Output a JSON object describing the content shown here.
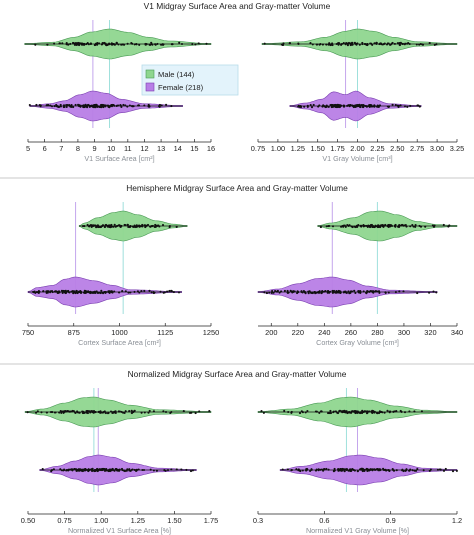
{
  "colors": {
    "male": "#8fd68f",
    "male_edge": "#4a9a55",
    "female": "#b87ee6",
    "female_edge": "#7a3fb0",
    "male_ref": "#9fe0dc",
    "female_ref": "#c4a6ec",
    "panel_bg": "#ffffff",
    "divider": "#c9c9c9",
    "dots": "#111111"
  },
  "legend": {
    "male_label": "Male (144)",
    "female_label": "Female (218)",
    "placement": "top-center"
  },
  "chart_data": [
    {
      "type": "violin",
      "row": 1,
      "col": 1,
      "row_title": "V1 Midgray Surface Area and Gray-matter Volume",
      "xlabel": "V1 Surface Area [cm²]",
      "xlim": [
        5,
        16
      ],
      "ticks": [
        5,
        6,
        7,
        8,
        9,
        10,
        11,
        12,
        13,
        14,
        15,
        16
      ],
      "tick_labels": [
        "5",
        "6",
        "7",
        "8",
        "9",
        "10",
        "11",
        "12",
        "13",
        "14",
        "15",
        "16"
      ],
      "series": [
        {
          "name": "Male (144)",
          "group": "male",
          "median": 9.9,
          "range": [
            4.8,
            16.0
          ],
          "profile": [
            [
              4.8,
              0.02
            ],
            [
              6.5,
              0.12
            ],
            [
              7.8,
              0.45
            ],
            [
              8.8,
              0.8
            ],
            [
              9.9,
              1.0
            ],
            [
              11.0,
              0.78
            ],
            [
              12.2,
              0.45
            ],
            [
              13.5,
              0.2
            ],
            [
              16.0,
              0.02
            ]
          ]
        },
        {
          "name": "Female (218)",
          "group": "female",
          "median": 8.9,
          "range": [
            5.1,
            14.3
          ],
          "profile": [
            [
              5.1,
              0.02
            ],
            [
              6.3,
              0.15
            ],
            [
              7.2,
              0.35
            ],
            [
              8.1,
              0.75
            ],
            [
              8.9,
              1.0
            ],
            [
              9.7,
              0.85
            ],
            [
              10.6,
              0.45
            ],
            [
              12.0,
              0.15
            ],
            [
              14.3,
              0.02
            ]
          ]
        }
      ]
    },
    {
      "type": "violin",
      "row": 1,
      "col": 2,
      "xlabel": "V1 Gray Volume [cm³]",
      "xlim": [
        0.75,
        3.25
      ],
      "ticks": [
        0.75,
        1.0,
        1.25,
        1.5,
        1.75,
        2.0,
        2.25,
        2.5,
        2.75,
        3.0,
        3.25
      ],
      "tick_labels": [
        "0.75",
        "1.00",
        "1.25",
        "1.50",
        "1.75",
        "2.00",
        "2.25",
        "2.50",
        "2.75",
        "3.00",
        "3.25"
      ],
      "series": [
        {
          "name": "Male (144)",
          "group": "male",
          "median": 2.0,
          "range": [
            0.8,
            3.25
          ],
          "profile": [
            [
              0.8,
              0.02
            ],
            [
              1.3,
              0.15
            ],
            [
              1.6,
              0.45
            ],
            [
              1.85,
              0.85
            ],
            [
              2.0,
              1.0
            ],
            [
              2.2,
              0.85
            ],
            [
              2.45,
              0.45
            ],
            [
              2.75,
              0.15
            ],
            [
              3.25,
              0.02
            ]
          ]
        },
        {
          "name": "Female (218)",
          "group": "female",
          "median": 1.85,
          "range": [
            1.15,
            2.8
          ],
          "profile": [
            [
              1.15,
              0.02
            ],
            [
              1.35,
              0.2
            ],
            [
              1.55,
              0.45
            ],
            [
              1.7,
              0.95
            ],
            [
              1.85,
              0.75
            ],
            [
              1.98,
              1.0
            ],
            [
              2.15,
              0.55
            ],
            [
              2.4,
              0.15
            ],
            [
              2.8,
              0.02
            ]
          ]
        }
      ]
    },
    {
      "type": "violin",
      "row": 2,
      "col": 1,
      "row_title": "Hemisphere Midgray Surface Area and Gray-matter Volume",
      "xlabel": "Cortex Surface Area [cm²]",
      "xlim": [
        750,
        1250
      ],
      "ticks": [
        750,
        875,
        1000,
        1125,
        1250
      ],
      "tick_labels": [
        "750",
        "875",
        "1000",
        "1125",
        "1250"
      ],
      "series": [
        {
          "name": "Male (144)",
          "group": "male",
          "median": 1010,
          "range": [
            890,
            1185
          ],
          "profile": [
            [
              890,
              0.02
            ],
            [
              905,
              0.2
            ],
            [
              940,
              0.55
            ],
            [
              985,
              0.9
            ],
            [
              1010,
              1.0
            ],
            [
              1050,
              0.75
            ],
            [
              1100,
              0.35
            ],
            [
              1150,
              0.12
            ],
            [
              1185,
              0.02
            ]
          ]
        },
        {
          "name": "Female (218)",
          "group": "female",
          "median": 880,
          "range": [
            750,
            1170
          ],
          "profile": [
            [
              750,
              0.02
            ],
            [
              775,
              0.3
            ],
            [
              820,
              0.45
            ],
            [
              850,
              0.85
            ],
            [
              880,
              1.0
            ],
            [
              930,
              0.75
            ],
            [
              980,
              0.45
            ],
            [
              1030,
              0.15
            ],
            [
              1170,
              0.02
            ]
          ]
        }
      ]
    },
    {
      "type": "violin",
      "row": 2,
      "col": 2,
      "xlabel": "Cortex Gray Volume [cm³]",
      "xlim": [
        190,
        340
      ],
      "ticks": [
        200,
        220,
        240,
        260,
        280,
        300,
        320,
        340
      ],
      "tick_labels": [
        "200",
        "220",
        "240",
        "260",
        "280",
        "300",
        "320",
        "340"
      ],
      "series": [
        {
          "name": "Male (144)",
          "group": "male",
          "median": 280,
          "range": [
            235,
            340
          ],
          "profile": [
            [
              235,
              0.02
            ],
            [
              245,
              0.2
            ],
            [
              262,
              0.55
            ],
            [
              275,
              0.95
            ],
            [
              282,
              1.0
            ],
            [
              295,
              0.75
            ],
            [
              310,
              0.3
            ],
            [
              325,
              0.1
            ],
            [
              340,
              0.02
            ]
          ]
        },
        {
          "name": "Female (218)",
          "group": "female",
          "median": 246,
          "range": [
            190,
            325
          ],
          "profile": [
            [
              190,
              0.02
            ],
            [
              205,
              0.2
            ],
            [
              220,
              0.55
            ],
            [
              235,
              0.9
            ],
            [
              246,
              1.0
            ],
            [
              258,
              0.8
            ],
            [
              272,
              0.4
            ],
            [
              290,
              0.12
            ],
            [
              325,
              0.02
            ]
          ]
        }
      ]
    },
    {
      "type": "violin",
      "row": 3,
      "col": 1,
      "row_title": "Normalized Midgray Surface Area and Gray-matter Volume",
      "xlabel": "Normalized V1 Surface Area [%]",
      "xlim": [
        0.5,
        1.75
      ],
      "ticks": [
        0.5,
        0.75,
        1.0,
        1.25,
        1.5,
        1.75
      ],
      "tick_labels": [
        "0.50",
        "0.75",
        "1.00",
        "1.25",
        "1.50",
        "1.75"
      ],
      "series": [
        {
          "name": "Male (144)",
          "group": "male",
          "median": 0.95,
          "range": [
            0.48,
            1.75
          ],
          "profile": [
            [
              0.48,
              0.02
            ],
            [
              0.6,
              0.2
            ],
            [
              0.75,
              0.6
            ],
            [
              0.88,
              0.95
            ],
            [
              0.95,
              1.0
            ],
            [
              1.05,
              0.8
            ],
            [
              1.2,
              0.45
            ],
            [
              1.4,
              0.15
            ],
            [
              1.75,
              0.02
            ]
          ]
        },
        {
          "name": "Female (218)",
          "group": "female",
          "median": 0.98,
          "range": [
            0.58,
            1.65
          ],
          "profile": [
            [
              0.58,
              0.02
            ],
            [
              0.7,
              0.25
            ],
            [
              0.82,
              0.6
            ],
            [
              0.92,
              0.9
            ],
            [
              0.98,
              1.0
            ],
            [
              1.08,
              0.85
            ],
            [
              1.2,
              0.45
            ],
            [
              1.4,
              0.12
            ],
            [
              1.65,
              0.02
            ]
          ]
        }
      ]
    },
    {
      "type": "violin",
      "row": 3,
      "col": 2,
      "xlabel": "Normalized V1 Gray Volume [%]",
      "xlim": [
        0.3,
        1.2
      ],
      "ticks": [
        0.3,
        0.6,
        0.9,
        1.2
      ],
      "tick_labels": [
        "0.3",
        "0.6",
        "0.9",
        "1.2"
      ],
      "series": [
        {
          "name": "Male (144)",
          "group": "male",
          "median": 0.7,
          "range": [
            0.3,
            1.2
          ],
          "profile": [
            [
              0.3,
              0.02
            ],
            [
              0.45,
              0.2
            ],
            [
              0.58,
              0.6
            ],
            [
              0.68,
              0.95
            ],
            [
              0.72,
              1.0
            ],
            [
              0.8,
              0.8
            ],
            [
              0.92,
              0.4
            ],
            [
              1.05,
              0.12
            ],
            [
              1.2,
              0.02
            ]
          ]
        },
        {
          "name": "Female (218)",
          "group": "female",
          "median": 0.75,
          "range": [
            0.4,
            1.2
          ],
          "profile": [
            [
              0.4,
              0.02
            ],
            [
              0.5,
              0.25
            ],
            [
              0.62,
              0.6
            ],
            [
              0.72,
              0.95
            ],
            [
              0.76,
              1.0
            ],
            [
              0.85,
              0.8
            ],
            [
              0.95,
              0.4
            ],
            [
              1.05,
              0.12
            ],
            [
              1.2,
              0.02
            ]
          ]
        }
      ]
    }
  ]
}
